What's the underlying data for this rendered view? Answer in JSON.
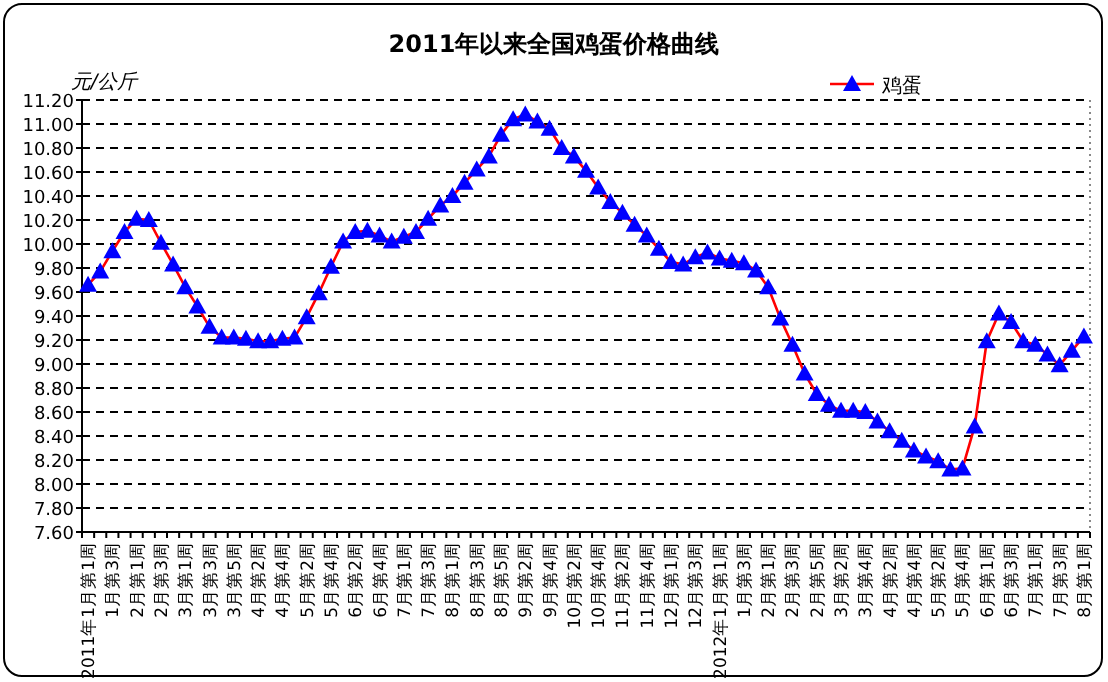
{
  "chart_data": {
    "type": "line",
    "title": "2011年以来全国鸡蛋价格曲线",
    "ylabel": "元/公斤",
    "categories": [
      "2011年1月第1周",
      null,
      "1月第3周",
      null,
      "2月第1周",
      null,
      "2月第3周",
      null,
      "3月第1周",
      null,
      "3月第3周",
      null,
      "3月第5周",
      null,
      "4月第2周",
      null,
      "4月第4周",
      null,
      "5月第2周",
      null,
      "5月第4周",
      null,
      "6月第2周",
      null,
      "6月第4周",
      null,
      "7月第1周",
      null,
      "7月第3周",
      null,
      "8月第1周",
      null,
      "8月第3周",
      null,
      "8月第5周",
      null,
      "9月第2周",
      null,
      "9月第4周",
      null,
      "10月第2周",
      null,
      "10月第4周",
      null,
      "11月第2周",
      null,
      "11月第4周",
      null,
      "12月第1周",
      null,
      "12月第3周",
      null,
      "2012年1月第1周",
      null,
      "1月第3周",
      null,
      "2月第1周",
      null,
      "2月第3周",
      null,
      "2月第5周",
      null,
      "3月第2周",
      null,
      "3月第4周",
      null,
      "4月第2周",
      null,
      "4月第4周",
      null,
      "5月第2周",
      null,
      "5月第4周",
      null,
      "6月第1周",
      null,
      "6月第3周",
      null,
      "7月第1周",
      null,
      "7月第3周",
      null,
      "8月第1周"
    ],
    "series": [
      {
        "name": "鸡蛋",
        "color": "#ff0000",
        "colors": [
          "#0000ff",
          "#0000ff",
          "#0000ff",
          "#0000ff",
          "#0000ff",
          "#0000ff",
          "#0000ff",
          "#0000ff",
          "#0000ff",
          "#0000ff",
          "#0000ff",
          "#0000ff",
          "#0000ff",
          "#0000ff",
          "#0000ff",
          "#0000ff",
          "#0000ff",
          "#0000ff",
          "#0000ff",
          "#0000ff",
          "#0000ff",
          "#0000ff",
          "#0000ff",
          "#0000ff",
          "#0000ff",
          "#0000ff",
          "#0000ff",
          "#0000ff",
          "#0000ff",
          "#0000ff",
          "#0000ff",
          "#0000ff",
          "#0000ff",
          "#0000ff",
          "#0000ff",
          "#0000ff",
          "#0000ff",
          "#0000ff",
          "#0000ff",
          "#0000ff",
          "#0000ff",
          "#0000ff",
          "#0000ff",
          "#0000ff",
          "#0000ff",
          "#0000ff",
          "#0000ff",
          "#0000ff",
          "#0000ff",
          "#0000ff",
          "#0000ff",
          "#0000ff",
          "#0000ff",
          "#0000ff",
          "#0000ff",
          "#0000ff",
          "#0000ff",
          "#0000ff",
          "#0000ff",
          "#0000ff",
          "#0000ff",
          "#0000ff",
          "#0000ff",
          "#0000ff",
          "#0000ff",
          "#0000ff",
          "#0000ff",
          "#0000ff",
          "#0000ff",
          "#0000ff",
          "#0000ff",
          "#0000ff",
          "#0000ff",
          "#0000ff",
          "#0000ff",
          "#0000ff",
          "#0000ff",
          "#0000ff",
          "#0000ff",
          "#0000ff",
          "#0000ff",
          "#0000ff",
          "#0000ff"
        ],
        "values": [
          9.66,
          9.77,
          9.94,
          10.1,
          10.21,
          10.2,
          10.01,
          9.83,
          9.64,
          9.48,
          9.31,
          9.22,
          9.22,
          9.21,
          9.19,
          9.19,
          9.21,
          9.22,
          9.39,
          9.59,
          9.81,
          10.02,
          10.1,
          10.11,
          10.07,
          10.02,
          10.06,
          10.1,
          10.21,
          10.32,
          10.4,
          10.51,
          10.62,
          10.73,
          10.91,
          11.04,
          11.08,
          11.02,
          10.96,
          10.8,
          10.73,
          10.61,
          10.47,
          10.35,
          10.26,
          10.16,
          10.07,
          9.96,
          9.85,
          9.83,
          9.89,
          9.93,
          9.88,
          9.86,
          9.84,
          9.78,
          9.64,
          9.38,
          9.16,
          8.92,
          8.75,
          8.66,
          8.61,
          8.61,
          8.6,
          8.52,
          8.44,
          8.36,
          8.28,
          8.23,
          8.19,
          8.12,
          8.13,
          8.48,
          9.19,
          9.42,
          9.35,
          9.19,
          9.16,
          9.08,
          8.99,
          9.11,
          9.23
        ]
      }
    ],
    "ylim": [
      7.6,
      11.2
    ],
    "yticks": [
      {
        "value": 7.6,
        "label": "7.60"
      },
      {
        "value": 7.8,
        "label": "7.80"
      },
      {
        "value": 8,
        "label": "8.00"
      },
      {
        "value": 8.2,
        "label": "8.20"
      },
      {
        "value": 8.4,
        "label": "8.40"
      },
      {
        "value": 8.6,
        "label": "8.60"
      },
      {
        "value": 8.8,
        "label": "8.80"
      },
      {
        "value": 9,
        "label": "9.00"
      },
      {
        "value": 9.2,
        "label": "9.20"
      },
      {
        "value": 9.4,
        "label": "9.40"
      },
      {
        "value": 9.6,
        "label": "9.60"
      },
      {
        "value": 9.8,
        "label": "9.80"
      },
      {
        "value": 10,
        "label": "10.00"
      },
      {
        "value": 10.2,
        "label": "10.20"
      },
      {
        "value": 10.4,
        "label": "10.40"
      },
      {
        "value": 10.6,
        "label": "10.60"
      },
      {
        "value": 10.8,
        "label": "10.80"
      },
      {
        "value": 11,
        "label": "11.00"
      },
      {
        "value": 11.2,
        "label": "11.20"
      }
    ],
    "grid": "y",
    "legend": "top right",
    "marker": "triangle",
    "line_style": "solid"
  }
}
